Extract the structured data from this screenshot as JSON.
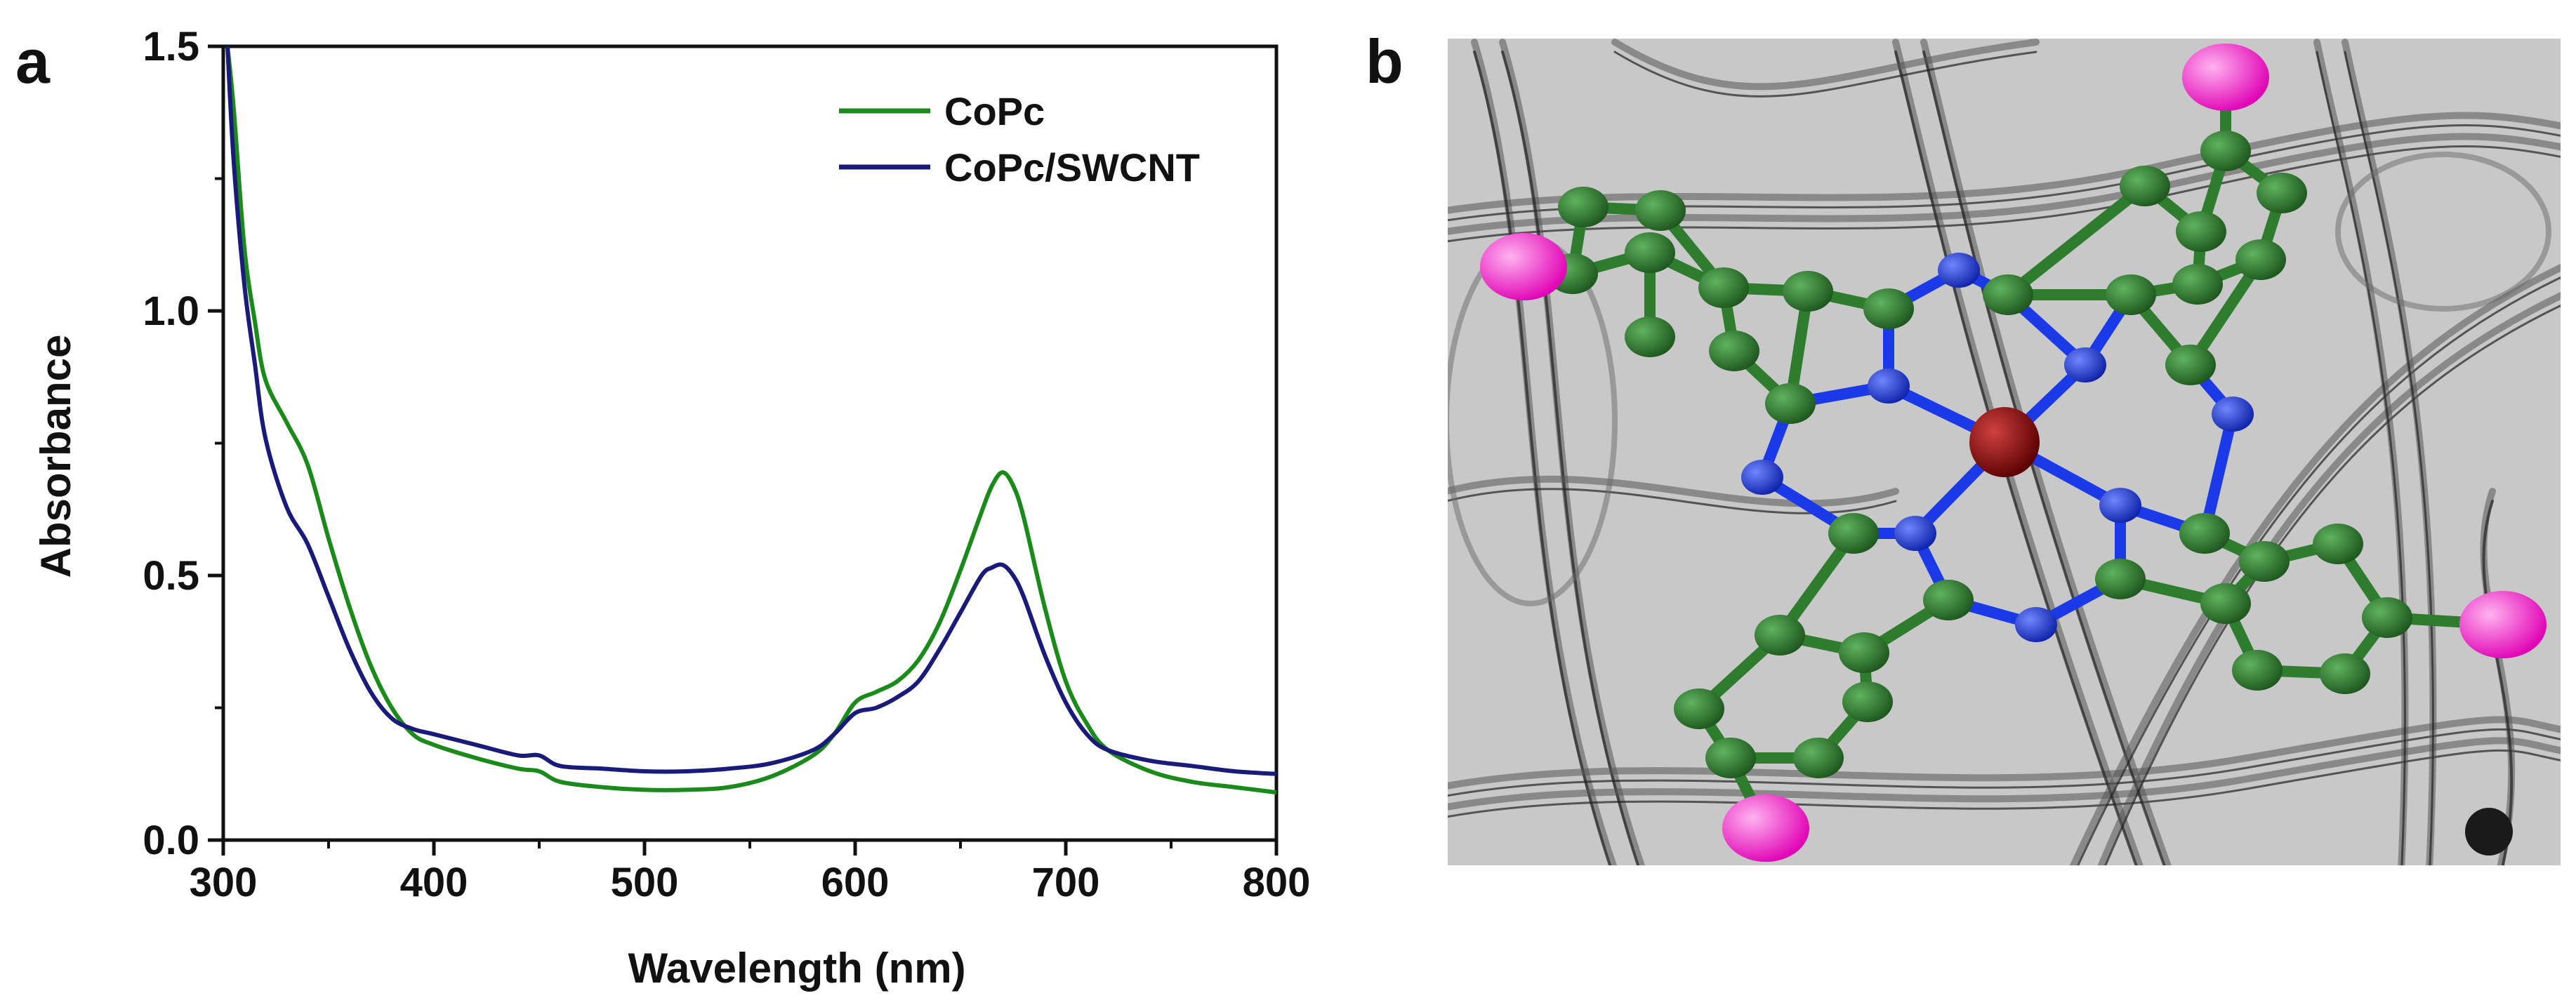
{
  "panel_a_label": "a",
  "panel_b_label": "b",
  "chart_data": {
    "type": "line",
    "title": "",
    "xlabel": "Wavelength (nm)",
    "ylabel": "Absorbance",
    "xlim": [
      300,
      800
    ],
    "ylim": [
      0.0,
      1.5
    ],
    "xticks": [
      300,
      400,
      500,
      600,
      700,
      800
    ],
    "xtick_labels": [
      "300",
      "400",
      "500",
      "600",
      "700",
      "800"
    ],
    "yticks": [
      0.0,
      0.5,
      1.0,
      1.5
    ],
    "ytick_labels": [
      "0.0",
      "0.5",
      "1.0",
      "1.5"
    ],
    "grid": false,
    "legend_position": "top-right",
    "series": [
      {
        "name": "CoPc",
        "color": "#1a8a1a",
        "x": [
          302,
          305,
          310,
          315,
          320,
          330,
          340,
          350,
          360,
          370,
          380,
          390,
          400,
          420,
          440,
          450,
          460,
          480,
          500,
          520,
          540,
          560,
          580,
          590,
          600,
          610,
          620,
          630,
          640,
          650,
          660,
          665,
          670,
          675,
          680,
          690,
          700,
          710,
          720,
          740,
          760,
          780,
          800
        ],
        "y": [
          1.5,
          1.38,
          1.12,
          0.98,
          0.87,
          0.79,
          0.71,
          0.57,
          0.44,
          0.33,
          0.25,
          0.2,
          0.18,
          0.155,
          0.135,
          0.13,
          0.11,
          0.1,
          0.095,
          0.095,
          0.1,
          0.12,
          0.16,
          0.2,
          0.26,
          0.28,
          0.3,
          0.34,
          0.41,
          0.51,
          0.62,
          0.67,
          0.695,
          0.67,
          0.61,
          0.44,
          0.3,
          0.22,
          0.17,
          0.13,
          0.11,
          0.1,
          0.09
        ]
      },
      {
        "name": "CoPc/SWCNT",
        "color": "#1a1a7a",
        "x": [
          302,
          305,
          310,
          315,
          320,
          330,
          340,
          350,
          360,
          370,
          380,
          390,
          400,
          420,
          440,
          450,
          460,
          480,
          500,
          520,
          540,
          560,
          580,
          590,
          600,
          610,
          620,
          630,
          640,
          650,
          660,
          665,
          670,
          675,
          680,
          690,
          700,
          710,
          720,
          740,
          760,
          780,
          800
        ],
        "y": [
          1.5,
          1.28,
          1.05,
          0.9,
          0.76,
          0.63,
          0.56,
          0.46,
          0.36,
          0.28,
          0.23,
          0.21,
          0.2,
          0.18,
          0.16,
          0.16,
          0.14,
          0.135,
          0.13,
          0.13,
          0.135,
          0.145,
          0.17,
          0.2,
          0.24,
          0.25,
          0.27,
          0.3,
          0.36,
          0.43,
          0.5,
          0.515,
          0.52,
          0.5,
          0.46,
          0.35,
          0.26,
          0.2,
          0.17,
          0.15,
          0.14,
          0.13,
          0.125
        ]
      }
    ]
  },
  "molecule": {
    "description_label": "",
    "colors": {
      "carbon": "#2e7d2e",
      "nitrogen": "#1a3ae8",
      "cobalt": "#8b0000",
      "substituent": "#ff33cc",
      "bond_carbon": "#2e7d2e",
      "bond_nitrogen": "#1a3ae8",
      "background": "#c9c9c9"
    }
  }
}
